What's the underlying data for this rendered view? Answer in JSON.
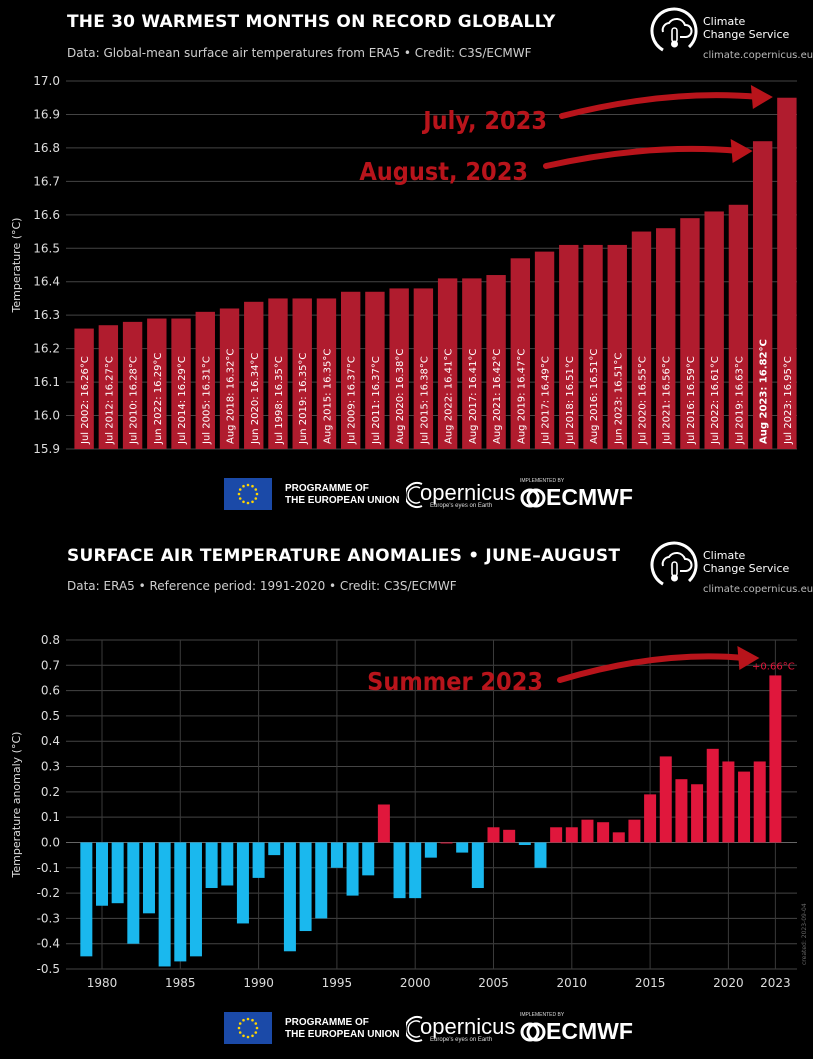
{
  "top": {
    "title": "THE 30 WARMEST MONTHS ON RECORD GLOBALLY",
    "subtitle": "Data: Global-mean surface air temperatures from ERA5 • Credit: C3S/ECMWF",
    "logo_name": "Climate\nChange Service",
    "logo_url": "climate.copernicus.eu",
    "annotations": [
      {
        "text": "July, 2023",
        "target_index": 29
      },
      {
        "text": "August, 2023",
        "target_index": 28
      }
    ],
    "annotation_color": "#b8141b",
    "bar_color": "#b01c2e"
  },
  "bottom": {
    "title": "SURFACE AIR TEMPERATURE ANOMALIES • JUNE–AUGUST",
    "subtitle": "Data: ERA5 • Reference period: 1991-2020 • Credit: C3S/ECMWF",
    "logo_name": "Climate\nChange Service",
    "logo_url": "climate.copernicus.eu",
    "annotation": {
      "text": "Summer 2023",
      "target_year": 2023
    },
    "last_label": "+0.66°C",
    "positive_color": "#e0173c",
    "negative_color": "#1ab8ee",
    "side_note": "created: 2023-09-04"
  },
  "footer": {
    "eu_text": "PROGRAMME OF\nTHE EUROPEAN UNION",
    "copernicus": "opernicus",
    "copernicus_tagline": "Europe's eyes on Earth",
    "implemented_by": "IMPLEMENTED BY",
    "ecmwf": "ECMWF"
  },
  "chart_data": [
    {
      "type": "bar",
      "title": "THE 30 WARMEST MONTHS ON RECORD GLOBALLY",
      "ylabel": "Temperature (°C)",
      "ylim": [
        15.9,
        17.0
      ],
      "yticks": [
        15.9,
        16.0,
        16.1,
        16.2,
        16.3,
        16.4,
        16.5,
        16.6,
        16.7,
        16.8,
        16.9,
        17.0
      ],
      "grid": true,
      "categories": [
        "Jul 2002",
        "Jul 2012",
        "Jul 2010",
        "Jun 2022",
        "Jul 2014",
        "Jul 2005",
        "Aug 2018",
        "Jun 2020",
        "Jul 1998",
        "Jun 2019",
        "Aug 2015",
        "Jul 2009",
        "Jul 2011",
        "Aug 2020",
        "Jul 2015",
        "Aug 2022",
        "Aug 2017",
        "Aug 2021",
        "Aug 2019",
        "Jul 2017",
        "Jul 2018",
        "Aug 2016",
        "Jun 2023",
        "Jul 2020",
        "Jul 2021",
        "Jul 2016",
        "Jul 2022",
        "Jul 2019",
        "Aug 2023",
        "Jul 2023"
      ],
      "values": [
        16.26,
        16.27,
        16.28,
        16.29,
        16.29,
        16.31,
        16.32,
        16.34,
        16.35,
        16.35,
        16.35,
        16.37,
        16.37,
        16.38,
        16.38,
        16.41,
        16.41,
        16.42,
        16.47,
        16.49,
        16.51,
        16.51,
        16.51,
        16.55,
        16.56,
        16.59,
        16.61,
        16.63,
        16.82,
        16.95
      ],
      "bar_labels": [
        "Jul 2002: 16.26°C",
        "Jul 2012: 16.27°C",
        "Jul 2010: 16.28°C",
        "Jun 2022: 16.29°C",
        "Jul 2014: 16.29°C",
        "Jul 2005: 16.31°C",
        "Aug 2018: 16.32°C",
        "Jun 2020: 16.34°C",
        "Jul 1998: 16.35°C",
        "Jun 2019: 16.35°C",
        "Aug 2015: 16.35°C",
        "Jul 2009: 16.37°C",
        "Jul 2011: 16.37°C",
        "Aug 2020: 16.38°C",
        "Jul 2015: 16.38°C",
        "Aug 2022: 16.41°C",
        "Aug 2017: 16.41°C",
        "Aug 2021: 16.42°C",
        "Aug 2019: 16.47°C",
        "Jul 2017: 16.49°C",
        "Jul 2018: 16.51°C",
        "Aug 2016: 16.51°C",
        "Jun 2023: 16.51°C",
        "Jul 2020: 16.55°C",
        "Jul 2021: 16.56°C",
        "Jul 2016: 16.59°C",
        "Jul 2022: 16.61°C",
        "Jul 2019: 16.63°C",
        "Aug 2023: 16.82°C",
        "Jul 2023: 16.95°C"
      ],
      "bold_labels": [
        "Aug 2023: 16.82°C"
      ]
    },
    {
      "type": "bar",
      "title": "SURFACE AIR TEMPERATURE ANOMALIES • JUNE–AUGUST",
      "ylabel": "Temperature anomaly (°C)",
      "ylim": [
        -0.5,
        0.8
      ],
      "yticks": [
        -0.5,
        -0.4,
        -0.3,
        -0.2,
        -0.1,
        0.0,
        0.1,
        0.2,
        0.3,
        0.4,
        0.5,
        0.6,
        0.7,
        0.8
      ],
      "xticks": [
        1980,
        1985,
        1990,
        1995,
        2000,
        2005,
        2010,
        2015,
        2020,
        2023
      ],
      "grid": true,
      "x": [
        1979,
        1980,
        1981,
        1982,
        1983,
        1984,
        1985,
        1986,
        1987,
        1988,
        1989,
        1990,
        1991,
        1992,
        1993,
        1994,
        1995,
        1996,
        1997,
        1998,
        1999,
        2000,
        2001,
        2002,
        2003,
        2004,
        2005,
        2006,
        2007,
        2008,
        2009,
        2010,
        2011,
        2012,
        2013,
        2014,
        2015,
        2016,
        2017,
        2018,
        2019,
        2020,
        2021,
        2022,
        2023
      ],
      "values": [
        -0.45,
        -0.25,
        -0.24,
        -0.4,
        -0.28,
        -0.49,
        -0.47,
        -0.45,
        -0.18,
        -0.17,
        -0.32,
        -0.14,
        -0.05,
        -0.43,
        -0.35,
        -0.3,
        -0.1,
        -0.21,
        -0.13,
        0.15,
        -0.22,
        -0.22,
        -0.06,
        0.0,
        -0.04,
        -0.18,
        0.06,
        0.05,
        -0.01,
        -0.1,
        0.06,
        0.06,
        0.09,
        0.08,
        0.04,
        0.09,
        0.19,
        0.34,
        0.25,
        0.23,
        0.37,
        0.32,
        0.28,
        0.32,
        0.66
      ]
    }
  ]
}
